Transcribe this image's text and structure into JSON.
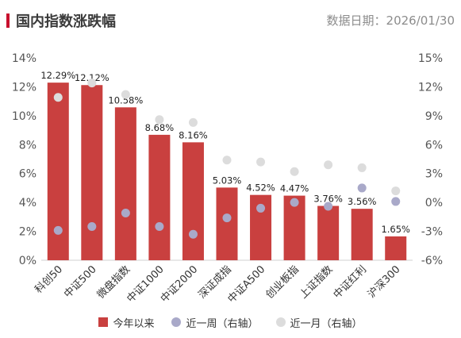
{
  "header": {
    "title": "国内指数涨跌幅",
    "date": "数据日期：2026/01/30"
  },
  "colors": {
    "accent": "#c8102e",
    "bar": "#c9403f",
    "week_dot": "#a9a9c9",
    "month_dot": "#dcdcdc",
    "axis_text": "#555555"
  },
  "chart_data": {
    "type": "bar",
    "categories": [
      "科创50",
      "中证500",
      "微盘指数",
      "中证1000",
      "中证2000",
      "深证成指",
      "中证A500",
      "创业板指",
      "上证指数",
      "中证红利",
      "沪深300"
    ],
    "series": [
      {
        "name": "今年以来",
        "axis": "left",
        "type": "bar",
        "values": [
          12.29,
          12.12,
          10.58,
          8.68,
          8.16,
          5.03,
          4.52,
          4.47,
          3.76,
          3.56,
          1.65
        ],
        "labels": [
          "12.29%",
          "12.12%",
          "10.58%",
          "8.68%",
          "8.16%",
          "5.03%",
          "4.52%",
          "4.47%",
          "3.76%",
          "3.56%",
          "1.65%"
        ]
      },
      {
        "name": "近一周（右轴）",
        "axis": "right",
        "type": "scatter",
        "values": [
          -2.9,
          -2.5,
          -1.1,
          -2.5,
          -3.3,
          -1.6,
          -0.6,
          0.0,
          -0.4,
          1.5,
          0.1
        ]
      },
      {
        "name": "近一月（右轴）",
        "axis": "right",
        "type": "scatter",
        "values": [
          10.9,
          12.4,
          11.2,
          8.6,
          8.3,
          4.4,
          4.2,
          3.2,
          3.9,
          3.6,
          1.2
        ]
      }
    ],
    "yleft": {
      "min": 0,
      "max": 14,
      "step": 2,
      "ticks": [
        "0%",
        "2%",
        "4%",
        "6%",
        "8%",
        "10%",
        "12%",
        "14%"
      ]
    },
    "yright": {
      "min": -6,
      "max": 15,
      "step": 3,
      "ticks": [
        "-6%",
        "-3%",
        "0%",
        "3%",
        "6%",
        "9%",
        "12%",
        "15%"
      ]
    }
  }
}
